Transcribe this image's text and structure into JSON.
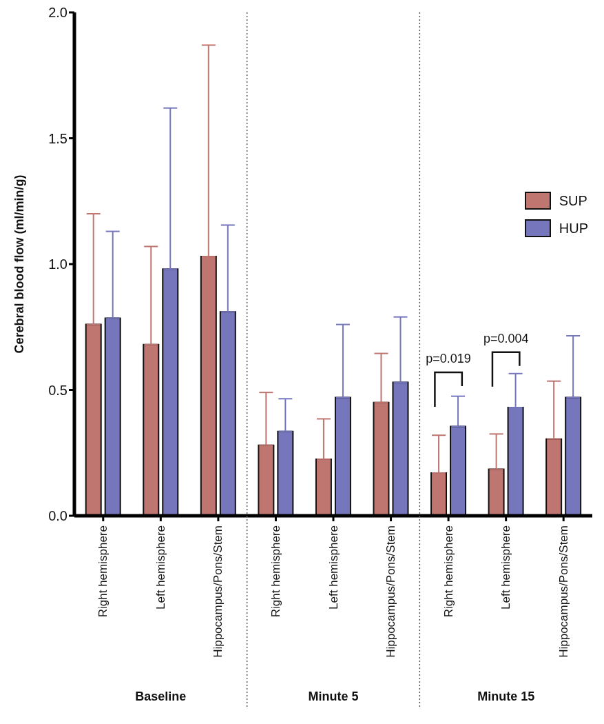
{
  "chart_data": {
    "type": "bar",
    "categories": [
      "Right hemisphere",
      "Left hemisphere",
      "Hippocampus/Pons/Stem",
      "Right hemisphere",
      "Left hemisphere",
      "Hippocampus/Pons/Stem",
      "Right hemisphere",
      "Left hemisphere",
      "Hippocampus/Pons/Stem"
    ],
    "ylabel": "Cerebral blood flow (ml/min/g)",
    "series": [
      {
        "name": "SUP",
        "color": "#bf7570",
        "values": [
          0.76,
          0.68,
          1.03,
          0.28,
          0.225,
          0.45,
          0.17,
          0.185,
          0.305
        ],
        "errors": [
          [
            0.76,
            1.2
          ],
          [
            0.68,
            1.07
          ],
          [
            1.03,
            1.87
          ],
          [
            0.28,
            0.49
          ],
          [
            0.225,
            0.385
          ],
          [
            0.45,
            0.645
          ],
          [
            0.17,
            0.32
          ],
          [
            0.185,
            0.325
          ],
          [
            0.305,
            0.535
          ]
        ]
      },
      {
        "name": "HUP",
        "color": "#7676bd",
        "values": [
          0.785,
          0.98,
          0.81,
          0.335,
          0.47,
          0.53,
          0.355,
          0.43,
          0.47
        ],
        "errors": [
          [
            0.785,
            1.13
          ],
          [
            0.98,
            1.62
          ],
          [
            0.81,
            1.155
          ],
          [
            0.335,
            0.465
          ],
          [
            0.47,
            0.76
          ],
          [
            0.53,
            0.79
          ],
          [
            0.355,
            0.475
          ],
          [
            0.43,
            0.565
          ],
          [
            0.47,
            0.715
          ]
        ]
      }
    ],
    "ylim": [
      0,
      2
    ],
    "yticks": [
      {
        "value": 0,
        "label": "0.0"
      },
      {
        "value": 0.5,
        "label": "0.5"
      },
      {
        "value": 1,
        "label": "1.0"
      },
      {
        "value": 1.5,
        "label": "1.5"
      },
      {
        "value": 2,
        "label": "2.0"
      }
    ],
    "annotations": [
      "Baseline",
      "Minute 5",
      "Minute 15",
      "p=0.019",
      "p=0.004"
    ],
    "grid": false,
    "legend": "top right"
  }
}
